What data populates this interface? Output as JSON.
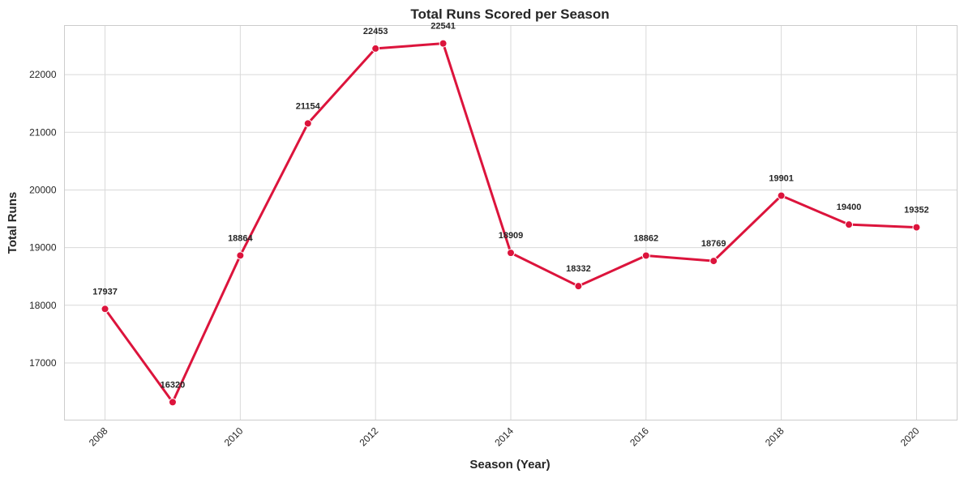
{
  "chart_data": {
    "type": "line",
    "title": "Total Runs Scored per Season",
    "xlabel": "Season (Year)",
    "ylabel": "Total Runs",
    "x": [
      2008,
      2009,
      2010,
      2011,
      2012,
      2013,
      2014,
      2015,
      2016,
      2017,
      2018,
      2019,
      2020
    ],
    "values": [
      17937,
      16320,
      18864,
      21154,
      22453,
      22541,
      18909,
      18332,
      18862,
      18769,
      19901,
      19400,
      19352
    ],
    "data_labels": [
      "17937",
      "16320",
      "18864",
      "21154",
      "22453",
      "22541",
      "18909",
      "18332",
      "18862",
      "18769",
      "19901",
      "19400",
      "19352"
    ],
    "x_ticks": [
      "2008",
      "2010",
      "2012",
      "2014",
      "2016",
      "2018",
      "2020"
    ],
    "y_ticks": [
      "17000",
      "18000",
      "19000",
      "20000",
      "21000",
      "22000"
    ],
    "xlim": [
      2007.4,
      2020.6
    ],
    "ylim": [
      16009,
      22852
    ],
    "grid": true,
    "line_color": "#dc143c",
    "marker_edge_color": "#ffffff",
    "x_tick_rotation": "45 degrees"
  }
}
